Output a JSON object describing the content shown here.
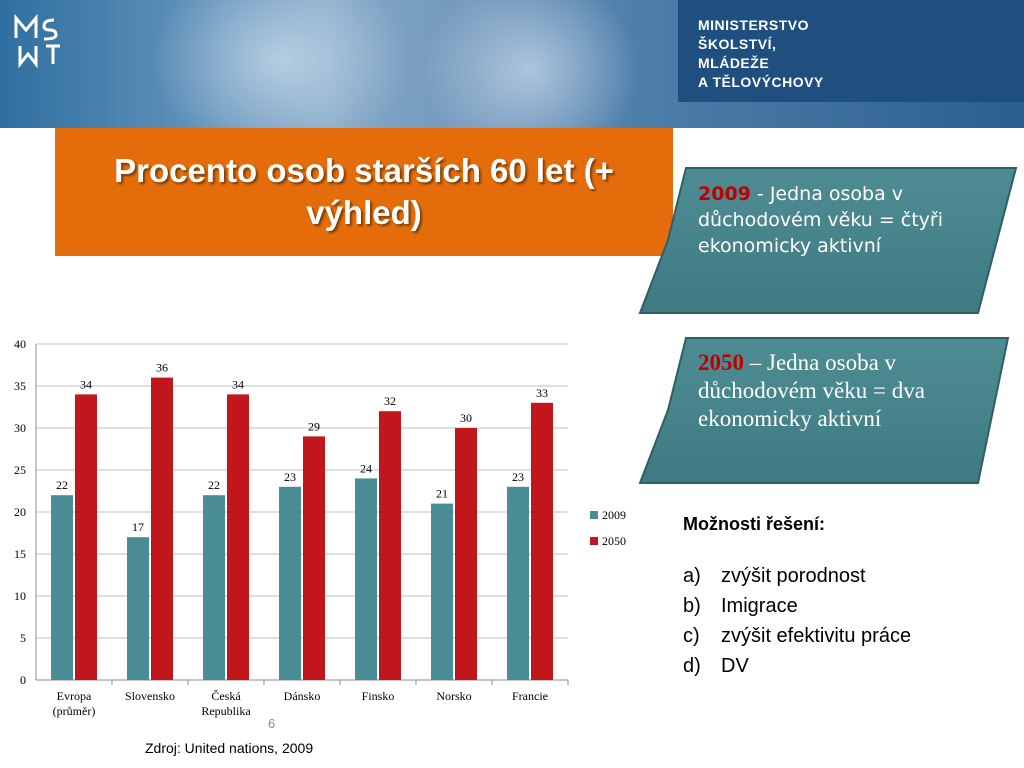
{
  "header": {
    "ministry_name": "MINISTERSTVO\nŠKOLSTVÍ,\nMLÁDEŽE\nA TĚLOVÝCHOVY",
    "logo_icon": "msmt-logo-icon",
    "accent_color": "#1e4f7f"
  },
  "title": {
    "text": "Procento osob starších 60 let (+ výhled)",
    "background_color": "#e46c0a"
  },
  "callouts": [
    {
      "year": "2009",
      "text": " - Jedna osoba v důchodovém věku = čtyři ekonomicky aktivní"
    },
    {
      "year": "2050",
      "text": " – Jedna osoba v důchodovém věku = dva ekonomicky aktivní"
    }
  ],
  "chart_data": {
    "type": "bar",
    "categories": [
      "Evropa (průměr)",
      "Slovensko",
      "Česká Republika",
      "Dánsko",
      "Finsko",
      "Norsko",
      "Francie"
    ],
    "series": [
      {
        "name": "2009",
        "values": [
          22,
          17,
          22,
          23,
          24,
          21,
          23
        ],
        "color": "#4a8c94"
      },
      {
        "name": "2050",
        "values": [
          34,
          36,
          34,
          29,
          32,
          30,
          33
        ],
        "color": "#c0161c"
      }
    ],
    "ylim": [
      0,
      40
    ],
    "yticks": [
      0,
      5,
      10,
      15,
      20,
      25,
      30,
      35,
      40
    ],
    "grid": true,
    "legend": "right",
    "xlabel": "",
    "ylabel": ""
  },
  "solutions": {
    "heading": "Možnosti řešení:",
    "items": [
      {
        "letter": "a)",
        "text": "zvýšit porodnost"
      },
      {
        "letter": "b)",
        "text": "Imigrace"
      },
      {
        "letter": "c)",
        "text": "zvýšit efektivitu práce"
      },
      {
        "letter": "d)",
        "text": "DV"
      }
    ]
  },
  "page_number": "6",
  "source": "Zdroj: United nations, 2009"
}
